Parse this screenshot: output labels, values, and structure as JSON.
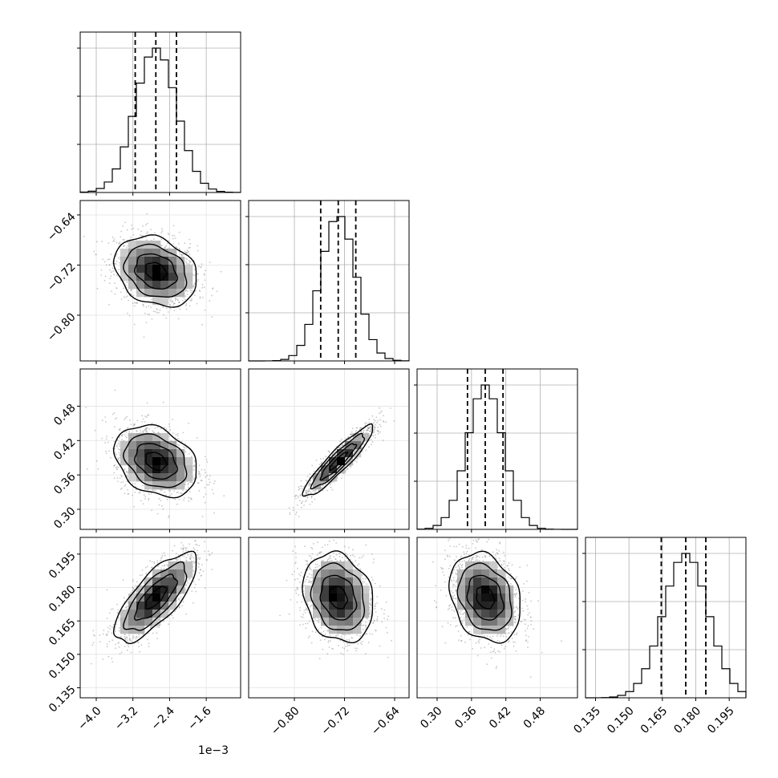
{
  "chart_data": {
    "type": "corner",
    "description_note": "",
    "parameters": [
      {
        "range": [
          -4.35,
          -0.85
        ],
        "ticks": [
          -4.0,
          -3.2,
          -2.4,
          -1.6
        ],
        "tick_labels": [
          "−4.0",
          "−3.2",
          "−2.4",
          "−1.6"
        ],
        "offset_label": "1e−3",
        "quantiles": [
          -3.15,
          -2.7,
          -2.25
        ],
        "mean": -2.7,
        "sd": 0.45
      },
      {
        "range": [
          -0.873,
          -0.617
        ],
        "ticks": [
          -0.8,
          -0.72,
          -0.64
        ],
        "tick_labels": [
          "−0.80",
          "−0.72",
          "−0.64"
        ],
        "offset_label": "",
        "quantiles": [
          -0.758,
          -0.73,
          -0.702
        ],
        "mean": -0.73,
        "sd": 0.028
      },
      {
        "range": [
          0.265,
          0.545
        ],
        "ticks": [
          0.3,
          0.36,
          0.42,
          0.48
        ],
        "tick_labels": [
          "0.30",
          "0.36",
          "0.42",
          "0.48"
        ],
        "offset_label": "",
        "quantiles": [
          0.353,
          0.384,
          0.415
        ],
        "mean": 0.384,
        "sd": 0.031
      },
      {
        "range": [
          0.1305,
          0.2025
        ],
        "ticks": [
          0.135,
          0.15,
          0.165,
          0.18,
          0.195
        ],
        "tick_labels": [
          "0.135",
          "0.150",
          "0.165",
          "0.180",
          "0.195"
        ],
        "offset_label": "",
        "quantiles": [
          0.1645,
          0.1755,
          0.1845
        ],
        "mean": 0.1755,
        "sd": 0.01
      }
    ],
    "correlations": [
      {
        "i": 1,
        "j": 0,
        "rho": -0.25
      },
      {
        "i": 2,
        "j": 0,
        "rho": -0.3
      },
      {
        "i": 2,
        "j": 1,
        "rho": 0.92
      },
      {
        "i": 3,
        "j": 0,
        "rho": 0.75
      },
      {
        "i": 3,
        "j": 1,
        "rho": -0.2
      },
      {
        "i": 3,
        "j": 2,
        "rho": -0.25
      }
    ],
    "histogram_bins": 20,
    "grid": true,
    "colors": {
      "axis": "#000000",
      "grid": "#b0b0b0",
      "scatter": "#9a9a9a",
      "density_dark": "#000000"
    }
  }
}
